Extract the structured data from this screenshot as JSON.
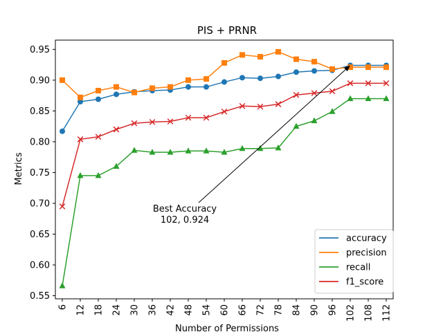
{
  "chart_data": {
    "type": "line",
    "title": "PIS + PRNR",
    "xlabel": "Number of Permissions",
    "ylabel": "Metrics",
    "x": [
      6,
      12,
      18,
      24,
      30,
      36,
      42,
      48,
      54,
      60,
      66,
      72,
      78,
      84,
      90,
      96,
      102,
      108,
      112
    ],
    "ylim": [
      0.545,
      0.965
    ],
    "yticks": [
      0.55,
      0.6,
      0.65,
      0.7,
      0.75,
      0.8,
      0.85,
      0.9,
      0.95
    ],
    "ytick_labels": [
      "0.55",
      "0.60",
      "0.65",
      "0.70",
      "0.75",
      "0.80",
      "0.85",
      "0.90",
      "0.95"
    ],
    "xtick_labels": [
      "6",
      "12",
      "18",
      "24",
      "30",
      "36",
      "42",
      "48",
      "54",
      "60",
      "66",
      "72",
      "78",
      "84",
      "90",
      "96",
      "102",
      "108",
      "112"
    ],
    "grid": false,
    "legend_position": "lower-right",
    "series": [
      {
        "name": "accuracy",
        "color": "#1f77b4",
        "marker": "circle",
        "values": [
          0.817,
          0.865,
          0.869,
          0.877,
          0.881,
          0.883,
          0.884,
          0.889,
          0.889,
          0.897,
          0.904,
          0.903,
          0.906,
          0.913,
          0.915,
          0.916,
          0.924,
          0.924,
          0.924
        ]
      },
      {
        "name": "precision",
        "color": "#ff7f0e",
        "marker": "square",
        "values": [
          0.9,
          0.872,
          0.883,
          0.889,
          0.88,
          0.887,
          0.889,
          0.9,
          0.902,
          0.928,
          0.941,
          0.938,
          0.946,
          0.934,
          0.93,
          0.918,
          0.921,
          0.921,
          0.921
        ]
      },
      {
        "name": "recall",
        "color": "#2ca02c",
        "marker": "triangle",
        "values": [
          0.566,
          0.745,
          0.745,
          0.76,
          0.786,
          0.783,
          0.783,
          0.785,
          0.785,
          0.783,
          0.789,
          0.789,
          0.79,
          0.825,
          0.834,
          0.849,
          0.87,
          0.87,
          0.87
        ]
      },
      {
        "name": "f1_score",
        "color": "#d62728",
        "marker": "x",
        "values": [
          0.695,
          0.804,
          0.808,
          0.82,
          0.83,
          0.832,
          0.833,
          0.839,
          0.839,
          0.849,
          0.858,
          0.857,
          0.861,
          0.876,
          0.879,
          0.882,
          0.895,
          0.895,
          0.895
        ]
      }
    ],
    "annotation": {
      "line1": "Best Accuracy",
      "line2": "102, 0.924",
      "point_index": 16,
      "point_value": 0.924
    }
  }
}
